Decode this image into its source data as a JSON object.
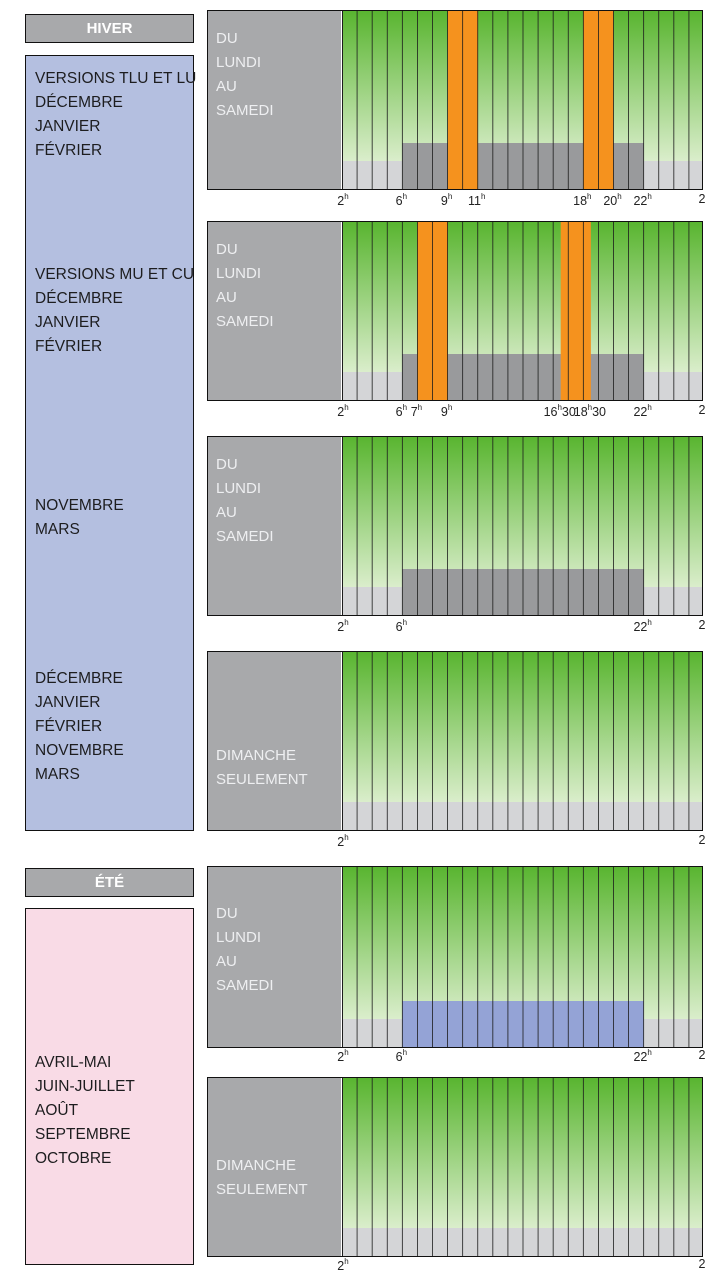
{
  "seasons": {
    "winter": {
      "header": "HIVER",
      "groups": [
        {
          "lines": [
            "VERSIONS TLU ET LU",
            "DÉCEMBRE",
            "JANVIER",
            "FÉVRIER"
          ]
        },
        {
          "lines": [
            "VERSIONS MU ET CU",
            "DÉCEMBRE",
            "JANVIER",
            "FÉVRIER"
          ]
        },
        {
          "lines": [
            "NOVEMBRE",
            "MARS"
          ]
        },
        {
          "lines": [
            "DÉCEMBRE",
            "JANVIER",
            "FÉVRIER",
            "NOVEMBRE",
            "MARS"
          ]
        }
      ]
    },
    "summer": {
      "header": "ÉTÉ",
      "groups": [
        {
          "lines": [
            "AVRIL-MAI",
            "JUIN-JUILLET",
            "AOÛT",
            "SEPTEMBRE",
            "OCTOBRE"
          ]
        }
      ]
    }
  },
  "panels": [
    {
      "label": [
        "DU",
        "LUNDI",
        "AU",
        "SAMEDI"
      ],
      "base_band": {
        "start": 6,
        "end": 22,
        "color": "#999a9c"
      },
      "peaks": [
        {
          "start": 9,
          "end": 11
        },
        {
          "start": 18,
          "end": 20
        }
      ],
      "ticks": [
        {
          "h": "2",
          "sup": "h",
          "m": ""
        },
        {
          "h": "6",
          "sup": "h",
          "m": ""
        },
        {
          "h": "9",
          "sup": "h",
          "m": ""
        },
        {
          "h": "11",
          "sup": "h",
          "m": ""
        },
        {
          "h": "18",
          "sup": "h",
          "m": ""
        },
        {
          "h": "20",
          "sup": "h",
          "m": ""
        },
        {
          "h": "22",
          "sup": "h",
          "m": ""
        },
        {
          "h": "2",
          "sup": "",
          "m": ""
        }
      ]
    },
    {
      "label": [
        "DU",
        "LUNDI",
        "AU",
        "SAMEDI"
      ],
      "base_band": {
        "start": 6,
        "end": 22,
        "color": "#999a9c"
      },
      "peaks": [
        {
          "start": 7,
          "end": 9
        },
        {
          "start": 16.5,
          "end": 18.5
        }
      ],
      "ticks": [
        {
          "h": "2",
          "sup": "h",
          "m": ""
        },
        {
          "h": "6",
          "sup": "h",
          "m": ""
        },
        {
          "h": "7",
          "sup": "h",
          "m": ""
        },
        {
          "h": "9",
          "sup": "h",
          "m": ""
        },
        {
          "h": "16",
          "sup": "h",
          "m": "30"
        },
        {
          "h": "18",
          "sup": "h",
          "m": "30"
        },
        {
          "h": "22",
          "sup": "h",
          "m": ""
        },
        {
          "h": "2",
          "sup": "",
          "m": ""
        }
      ]
    },
    {
      "label": [
        "DU",
        "LUNDI",
        "AU",
        "SAMEDI"
      ],
      "base_band": {
        "start": 6,
        "end": 22,
        "color": "#999a9c"
      },
      "peaks": [],
      "ticks": [
        {
          "h": "2",
          "sup": "h",
          "m": ""
        },
        {
          "h": "6",
          "sup": "h",
          "m": ""
        },
        {
          "h": "22",
          "sup": "h",
          "m": ""
        },
        {
          "h": "2",
          "sup": "",
          "m": ""
        }
      ]
    },
    {
      "label": [
        "DIMANCHE",
        "SEULEMENT"
      ],
      "base_band": null,
      "peaks": [],
      "ticks": [
        {
          "h": "2",
          "sup": "h",
          "m": ""
        },
        {
          "h": "2",
          "sup": "",
          "m": ""
        }
      ]
    },
    {
      "label": [
        "DU",
        "LUNDI",
        "AU",
        "SAMEDI"
      ],
      "base_band": {
        "start": 6,
        "end": 22,
        "color": "#94a3d6"
      },
      "peaks": [],
      "ticks": [
        {
          "h": "2",
          "sup": "h",
          "m": ""
        },
        {
          "h": "6",
          "sup": "h",
          "m": ""
        },
        {
          "h": "22",
          "sup": "h",
          "m": ""
        },
        {
          "h": "2",
          "sup": "",
          "m": ""
        }
      ]
    },
    {
      "label": [
        "DIMANCHE",
        "SEULEMENT"
      ],
      "base_band": null,
      "peaks": [],
      "ticks": [
        {
          "h": "2",
          "sup": "h",
          "m": ""
        },
        {
          "h": "2",
          "sup": "",
          "m": ""
        }
      ]
    }
  ],
  "colors": {
    "green_top": "#59b530",
    "green_bottom": "#f2f8e8",
    "baseline_gray": "#d4d5d7",
    "peak_orange": "#f5921e"
  }
}
